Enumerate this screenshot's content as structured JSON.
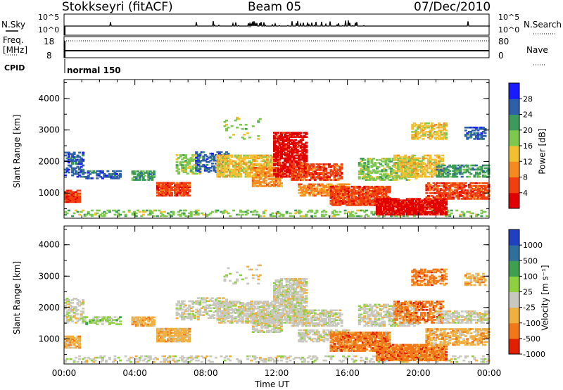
{
  "header": {
    "station": "Stokkseyri (fitACF)",
    "beam": "Beam 05",
    "date": "07/Dec/2010"
  },
  "strips": {
    "nsky_label": "N.Sky",
    "nsky_ticks": [
      "10^5",
      "10^0"
    ],
    "nsearch_label": "N.Search",
    "nsearch_ticks": [
      "10^5",
      "10^0"
    ],
    "freq_label": "Freq.",
    "freq_unit": "[MHz]",
    "freq_ticks": [
      "18",
      "8"
    ],
    "nave_label": "Nave",
    "nave_ticks": [
      "80",
      "0"
    ],
    "cpid_label": "CPID",
    "cpid_value": "normal 150"
  },
  "chart_data": [
    {
      "type": "heatmap",
      "name": "power",
      "ylabel": "Slant Range [km]",
      "yticks": [
        "1000",
        "2000",
        "3000",
        "4000"
      ],
      "ylim": [
        200,
        4600
      ],
      "colorbar_label": "Power [dB]",
      "colorbar_ticks": [
        "4",
        "8",
        "12",
        "16",
        "20",
        "24",
        "28"
      ],
      "colors": [
        "#1a1aff",
        "#2f5fa8",
        "#3e9a5a",
        "#7ec850",
        "#f0c030",
        "#f58a20",
        "#f04010",
        "#e00000"
      ]
    },
    {
      "type": "heatmap",
      "name": "velocity",
      "ylabel": "Slant Range [km]",
      "yticks": [
        "1000",
        "2000",
        "3000",
        "4000"
      ],
      "ylim": [
        200,
        4600
      ],
      "colorbar_label": "Velocity [m s⁻¹]",
      "colorbar_ticks": [
        "1000",
        "500",
        "100",
        "25",
        "-25",
        "-100",
        "-500",
        "-1000"
      ],
      "colors": [
        "#2040c0",
        "#2f6f9a",
        "#3ca050",
        "#8fd040",
        "#c8c8c0",
        "#f0b040",
        "#f07818",
        "#e02000"
      ]
    }
  ],
  "x_axis": {
    "ticks": [
      "00:00",
      "04:00",
      "08:00",
      "12:00",
      "16:00",
      "20:00",
      "00:00"
    ],
    "label": "Time UT"
  }
}
